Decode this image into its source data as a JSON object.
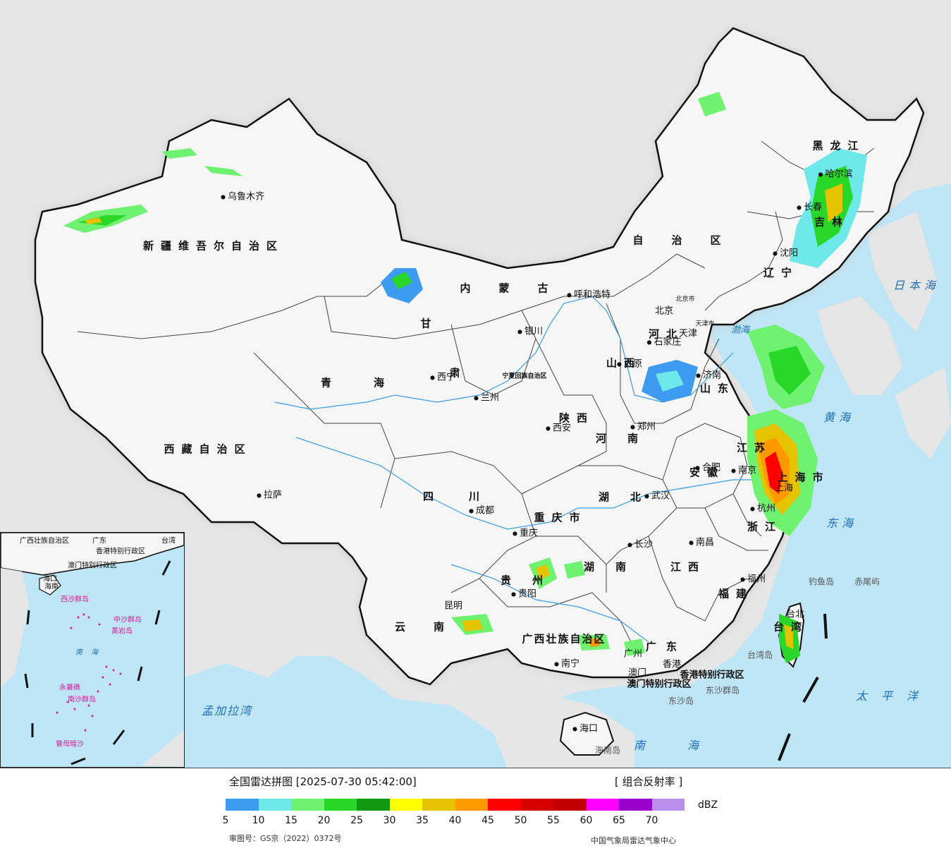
{
  "map": {
    "provinces": [
      {
        "name": "新疆维吾尔自治区"
      },
      {
        "name": "西藏自治区"
      },
      {
        "name": "青海"
      },
      {
        "name": "甘"
      },
      {
        "name": "肃"
      },
      {
        "name": "四川"
      },
      {
        "name": "云南"
      },
      {
        "name": "贵州"
      },
      {
        "name": "广西壮族自治区"
      },
      {
        "name": "广东"
      },
      {
        "name": "海南"
      },
      {
        "name": "湖南"
      },
      {
        "name": "湖北"
      },
      {
        "name": "江西"
      },
      {
        "name": "福建"
      },
      {
        "name": "浙江"
      },
      {
        "name": "安徽"
      },
      {
        "name": "江苏"
      },
      {
        "name": "山东"
      },
      {
        "name": "河南"
      },
      {
        "name": "山西"
      },
      {
        "name": "陕西"
      },
      {
        "name": "河北"
      },
      {
        "name": "辽宁"
      },
      {
        "name": "吉林"
      },
      {
        "name": "黑龙江"
      },
      {
        "name": "内蒙古"
      },
      {
        "name": "自治区"
      },
      {
        "name": "台湾"
      },
      {
        "name": "重庆市"
      },
      {
        "name": "上海市"
      },
      {
        "name": "宁夏回族自治区"
      }
    ],
    "cities": [
      {
        "name": "乌鲁木齐"
      },
      {
        "name": "拉萨"
      },
      {
        "name": "西宁"
      },
      {
        "name": "兰州"
      },
      {
        "name": "银川"
      },
      {
        "name": "呼和浩特"
      },
      {
        "name": "北京"
      },
      {
        "name": "北京市"
      },
      {
        "name": "天津"
      },
      {
        "name": "天津市"
      },
      {
        "name": "石家庄"
      },
      {
        "name": "太原"
      },
      {
        "name": "济南"
      },
      {
        "name": "郑州"
      },
      {
        "name": "西安"
      },
      {
        "name": "成都"
      },
      {
        "name": "重庆"
      },
      {
        "name": "武汉"
      },
      {
        "name": "合肥"
      },
      {
        "name": "南京"
      },
      {
        "name": "上海"
      },
      {
        "name": "杭州"
      },
      {
        "name": "长沙"
      },
      {
        "name": "南昌"
      },
      {
        "name": "福州"
      },
      {
        "name": "贵阳"
      },
      {
        "name": "昆明"
      },
      {
        "name": "南宁"
      },
      {
        "name": "广州"
      },
      {
        "name": "香港"
      },
      {
        "name": "澳门"
      },
      {
        "name": "海口"
      },
      {
        "name": "台北"
      },
      {
        "name": "沈阳"
      },
      {
        "name": "长春"
      },
      {
        "name": "哈尔滨"
      }
    ],
    "other_labels": [
      {
        "name": "香港特别行政区"
      },
      {
        "name": "澳门特别行政区"
      },
      {
        "name": "钓鱼岛"
      },
      {
        "name": "赤尾屿"
      },
      {
        "name": "台湾岛"
      },
      {
        "name": "东沙群岛"
      },
      {
        "name": "东沙岛"
      },
      {
        "name": "海南岛"
      }
    ],
    "seas": [
      {
        "name": "日本海"
      },
      {
        "name": "渤海"
      },
      {
        "name": "黄海"
      },
      {
        "name": "东海"
      },
      {
        "name": "太平洋"
      },
      {
        "name": "南海"
      },
      {
        "name": "孟加拉湾"
      }
    ],
    "inset_labels": [
      {
        "name": "广西壮族自治区"
      },
      {
        "name": "广东"
      },
      {
        "name": "香港特别行政区"
      },
      {
        "name": "澳门特别行政区"
      },
      {
        "name": "海南"
      },
      {
        "name": "海口"
      },
      {
        "name": "西沙群岛"
      },
      {
        "name": "中沙群岛"
      },
      {
        "name": "黄岩岛"
      },
      {
        "name": "南海"
      },
      {
        "name": "南沙群岛"
      },
      {
        "name": "永暑礁"
      },
      {
        "name": "曾母暗沙"
      },
      {
        "name": "台湾"
      }
    ]
  },
  "legend": {
    "title": "全国雷达拼图 [2025-07-30 05:42:00]",
    "product": "[ 组合反射率 ]",
    "unit": "dBZ",
    "colors": [
      "#3d9cf0",
      "#6ee8e8",
      "#6ff26f",
      "#28d728",
      "#119a11",
      "#ffff00",
      "#e6c300",
      "#ff9900",
      "#ff0000",
      "#d40000",
      "#c10000",
      "#ff00ff",
      "#9900cc",
      "#b98eed"
    ],
    "ticks": [
      "5",
      "10",
      "15",
      "20",
      "25",
      "30",
      "35",
      "40",
      "45",
      "50",
      "55",
      "60",
      "65",
      "70"
    ],
    "approval": "审图号：GS京（2022）0372号",
    "source": "中国气象局雷达气象中心"
  }
}
